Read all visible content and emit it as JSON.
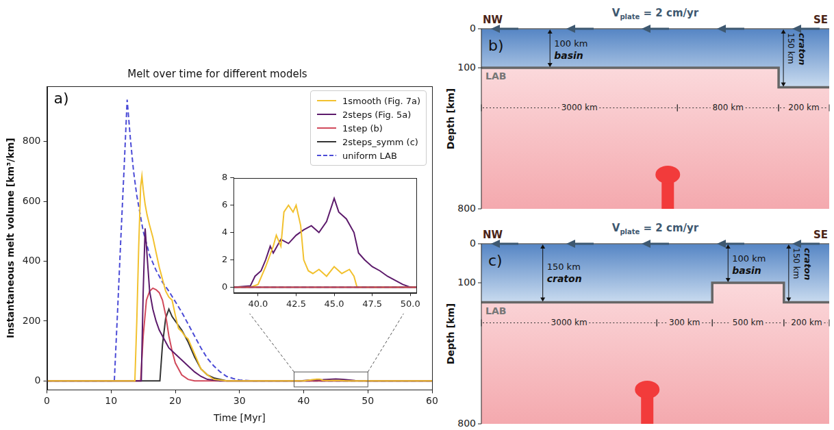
{
  "chart_data": [
    {
      "type": "line",
      "panel": "a)",
      "title": "Melt over time for different models",
      "x_label": "Time [Myr]",
      "y_label": "Instantaneous melt volume [km³/km]",
      "xlim": [
        0,
        60
      ],
      "xticks": [
        0,
        10,
        20,
        30,
        40,
        50,
        60
      ],
      "ylim": [
        -30,
        985
      ],
      "yticks": [
        0,
        200,
        400,
        600,
        800
      ],
      "grid": false,
      "legend": "upper right",
      "zoom_box": {
        "x": [
          38.5,
          50
        ],
        "y": [
          -20,
          30
        ]
      },
      "series": [
        {
          "name": "1smooth (Fig. 7a)",
          "color": "#f2c12e",
          "line_style": "solid",
          "x": [
            0,
            13.7,
            14,
            14.3,
            14.6,
            14.8,
            15,
            15.3,
            15.6,
            16,
            16.5,
            17,
            17.5,
            18,
            18.5,
            19,
            19.5,
            20,
            20.5,
            21,
            21.5,
            22,
            23,
            24,
            25,
            26,
            28,
            40,
            41,
            42,
            42.5,
            43,
            44,
            46,
            46.5,
            60
          ],
          "values": [
            0,
            0,
            200,
            450,
            650,
            685,
            640,
            590,
            555,
            520,
            480,
            430,
            380,
            340,
            300,
            280,
            270,
            220,
            175,
            165,
            150,
            140,
            90,
            40,
            20,
            5,
            0,
            0,
            3,
            6,
            6,
            2,
            1,
            1,
            0,
            0
          ]
        },
        {
          "name": "2steps (Fig. 5a)",
          "color": "#5c1a6b",
          "line_style": "solid",
          "x": [
            0,
            14.7,
            15,
            15.3,
            15.6,
            16,
            16.5,
            17,
            17.5,
            18,
            18.5,
            19,
            20,
            21,
            22,
            23,
            24,
            25,
            27,
            39.5,
            41,
            43,
            45,
            46,
            48,
            50,
            60
          ],
          "values": [
            0,
            0,
            300,
            510,
            420,
            300,
            240,
            200,
            170,
            150,
            130,
            110,
            90,
            70,
            50,
            30,
            15,
            5,
            0,
            0,
            3,
            4,
            6.5,
            5,
            1.5,
            0,
            0
          ]
        },
        {
          "name": "1step (b)",
          "color": "#d1495b",
          "line_style": "solid",
          "x": [
            0,
            14.6,
            15,
            15.5,
            16,
            16.5,
            17,
            17.5,
            18,
            18.5,
            19,
            19.5,
            20,
            21,
            22,
            23,
            60
          ],
          "values": [
            0,
            0,
            150,
            270,
            300,
            310,
            305,
            295,
            270,
            220,
            150,
            100,
            60,
            20,
            5,
            0,
            0
          ]
        },
        {
          "name": "2steps_symm (c)",
          "color": "#333333",
          "line_style": "solid",
          "x": [
            0,
            17.6,
            18,
            18.5,
            19,
            19.5,
            20,
            20.5,
            21,
            21.5,
            22,
            23,
            24,
            25,
            26,
            28,
            60
          ],
          "values": [
            0,
            0,
            120,
            210,
            240,
            215,
            200,
            185,
            170,
            150,
            130,
            80,
            40,
            20,
            10,
            0,
            0
          ]
        },
        {
          "name": "uniform LAB",
          "color": "#4a4ad6",
          "line_style": "dashed",
          "x": [
            0,
            10.5,
            11,
            11.5,
            12,
            12.5,
            13,
            13.5,
            14,
            15,
            16,
            17,
            18,
            19,
            20,
            21,
            22,
            23,
            24,
            25,
            26,
            27,
            28,
            29,
            30,
            32,
            60
          ],
          "values": [
            0,
            0,
            230,
            470,
            700,
            940,
            810,
            700,
            620,
            500,
            420,
            370,
            330,
            300,
            265,
            230,
            190,
            150,
            110,
            75,
            50,
            30,
            15,
            8,
            3,
            0,
            0
          ]
        }
      ]
    },
    {
      "type": "line",
      "xlim": [
        38.4,
        50.4
      ],
      "xticks": [
        {
          "value": 40,
          "label": "40.0"
        },
        {
          "value": 42.5,
          "label": "42.5"
        },
        {
          "value": 45,
          "label": "45.0"
        },
        {
          "value": 47.5,
          "label": "47.5"
        },
        {
          "value": 50,
          "label": "50.0"
        }
      ],
      "ylim": [
        -0.4,
        8
      ],
      "yticks": [
        0,
        2,
        4,
        6,
        8
      ],
      "grid": false,
      "series": [
        {
          "color": "#d1495b",
          "line_style": "solid",
          "x": [
            38.4,
            50.4
          ],
          "values": [
            0,
            0
          ]
        },
        {
          "color": "#333333",
          "line_style": "solid",
          "x": [
            38.4,
            50.4
          ],
          "values": [
            0,
            0
          ]
        },
        {
          "color": "#4a4ad6",
          "line_style": "dashed",
          "x": [
            38.4,
            50.4
          ],
          "values": [
            0,
            0
          ]
        },
        {
          "color": "#f2c12e",
          "line_style": "solid",
          "x": [
            38.4,
            39.5,
            40,
            40.5,
            41,
            41.2,
            41.5,
            41.7,
            42,
            42.3,
            42.5,
            42.8,
            43,
            43.3,
            43.6,
            44,
            44.5,
            45,
            45.5,
            46,
            46.3,
            46.5,
            50.4
          ],
          "values": [
            0,
            0,
            0.2,
            1.5,
            3,
            3.8,
            3,
            5.5,
            6,
            5.5,
            6,
            4.5,
            2,
            1.2,
            1,
            1.3,
            0.8,
            1.5,
            1,
            1.3,
            0.8,
            0,
            0
          ]
        },
        {
          "color": "#5c1a6b",
          "line_style": "solid",
          "x": [
            38.4,
            39.5,
            39.8,
            40.2,
            40.5,
            40.8,
            41,
            41.5,
            42,
            42.5,
            43,
            43.5,
            44,
            44.5,
            45,
            45.3,
            45.8,
            46.3,
            46.6,
            47,
            47.5,
            48,
            48.5,
            49,
            49.5,
            50,
            50.4
          ],
          "values": [
            0,
            0.1,
            0.8,
            1.2,
            2,
            3,
            2.5,
            3.5,
            3.2,
            3.8,
            4.2,
            4.5,
            4,
            4.8,
            6.5,
            5.5,
            5,
            4,
            2.5,
            2,
            1.5,
            1.2,
            0.8,
            0.5,
            0.2,
            0,
            0
          ]
        }
      ]
    }
  ],
  "diagrams": [
    {
      "panel": "b)",
      "ends": [
        "NW",
        "SE"
      ],
      "plate_velocity": {
        "symbol": "V",
        "subscript": "plate",
        "text": " = 2 cm/yr"
      },
      "depth_axis": {
        "title": "Depth [km]",
        "ticks": [
          0,
          100,
          800
        ],
        "ylim": [
          0,
          800
        ]
      },
      "boundary_label": "LAB",
      "segments": [
        {
          "width_km": 3000,
          "width_label": "3000 km",
          "thickness_km": 100,
          "thickness_label": "100 km",
          "name": "basin"
        },
        {
          "width_km": 800,
          "width_label": "800 km",
          "thickness_km": 100
        },
        {
          "width_km": 200,
          "width_label": "200 km",
          "thickness_km": 150,
          "thickness_label": "150 km",
          "name": "craton"
        }
      ]
    },
    {
      "panel": "c)",
      "ends": [
        "NW",
        "SE"
      ],
      "plate_velocity": {
        "symbol": "V",
        "subscript": "plate",
        "text": " = 2 cm/yr"
      },
      "depth_axis": {
        "title": "Depth [km]",
        "ticks": [
          0,
          100,
          800
        ],
        "ylim": [
          0,
          800
        ]
      },
      "boundary_label": "LAB",
      "segments": [
        {
          "width_km": 3000,
          "width_label": "3000 km",
          "thickness_km": 150,
          "thickness_label": "150 km",
          "name": "craton"
        },
        {
          "width_km": 300,
          "width_label": "300 km",
          "thickness_km": 150
        },
        {
          "width_km": 500,
          "width_label": "500 km",
          "thickness_km": 100,
          "thickness_label": "100 km",
          "name": "basin"
        },
        {
          "width_km": 200,
          "width_label": "200 km",
          "thickness_km": 150,
          "thickness_label": "150 km",
          "name": "craton"
        }
      ]
    }
  ]
}
